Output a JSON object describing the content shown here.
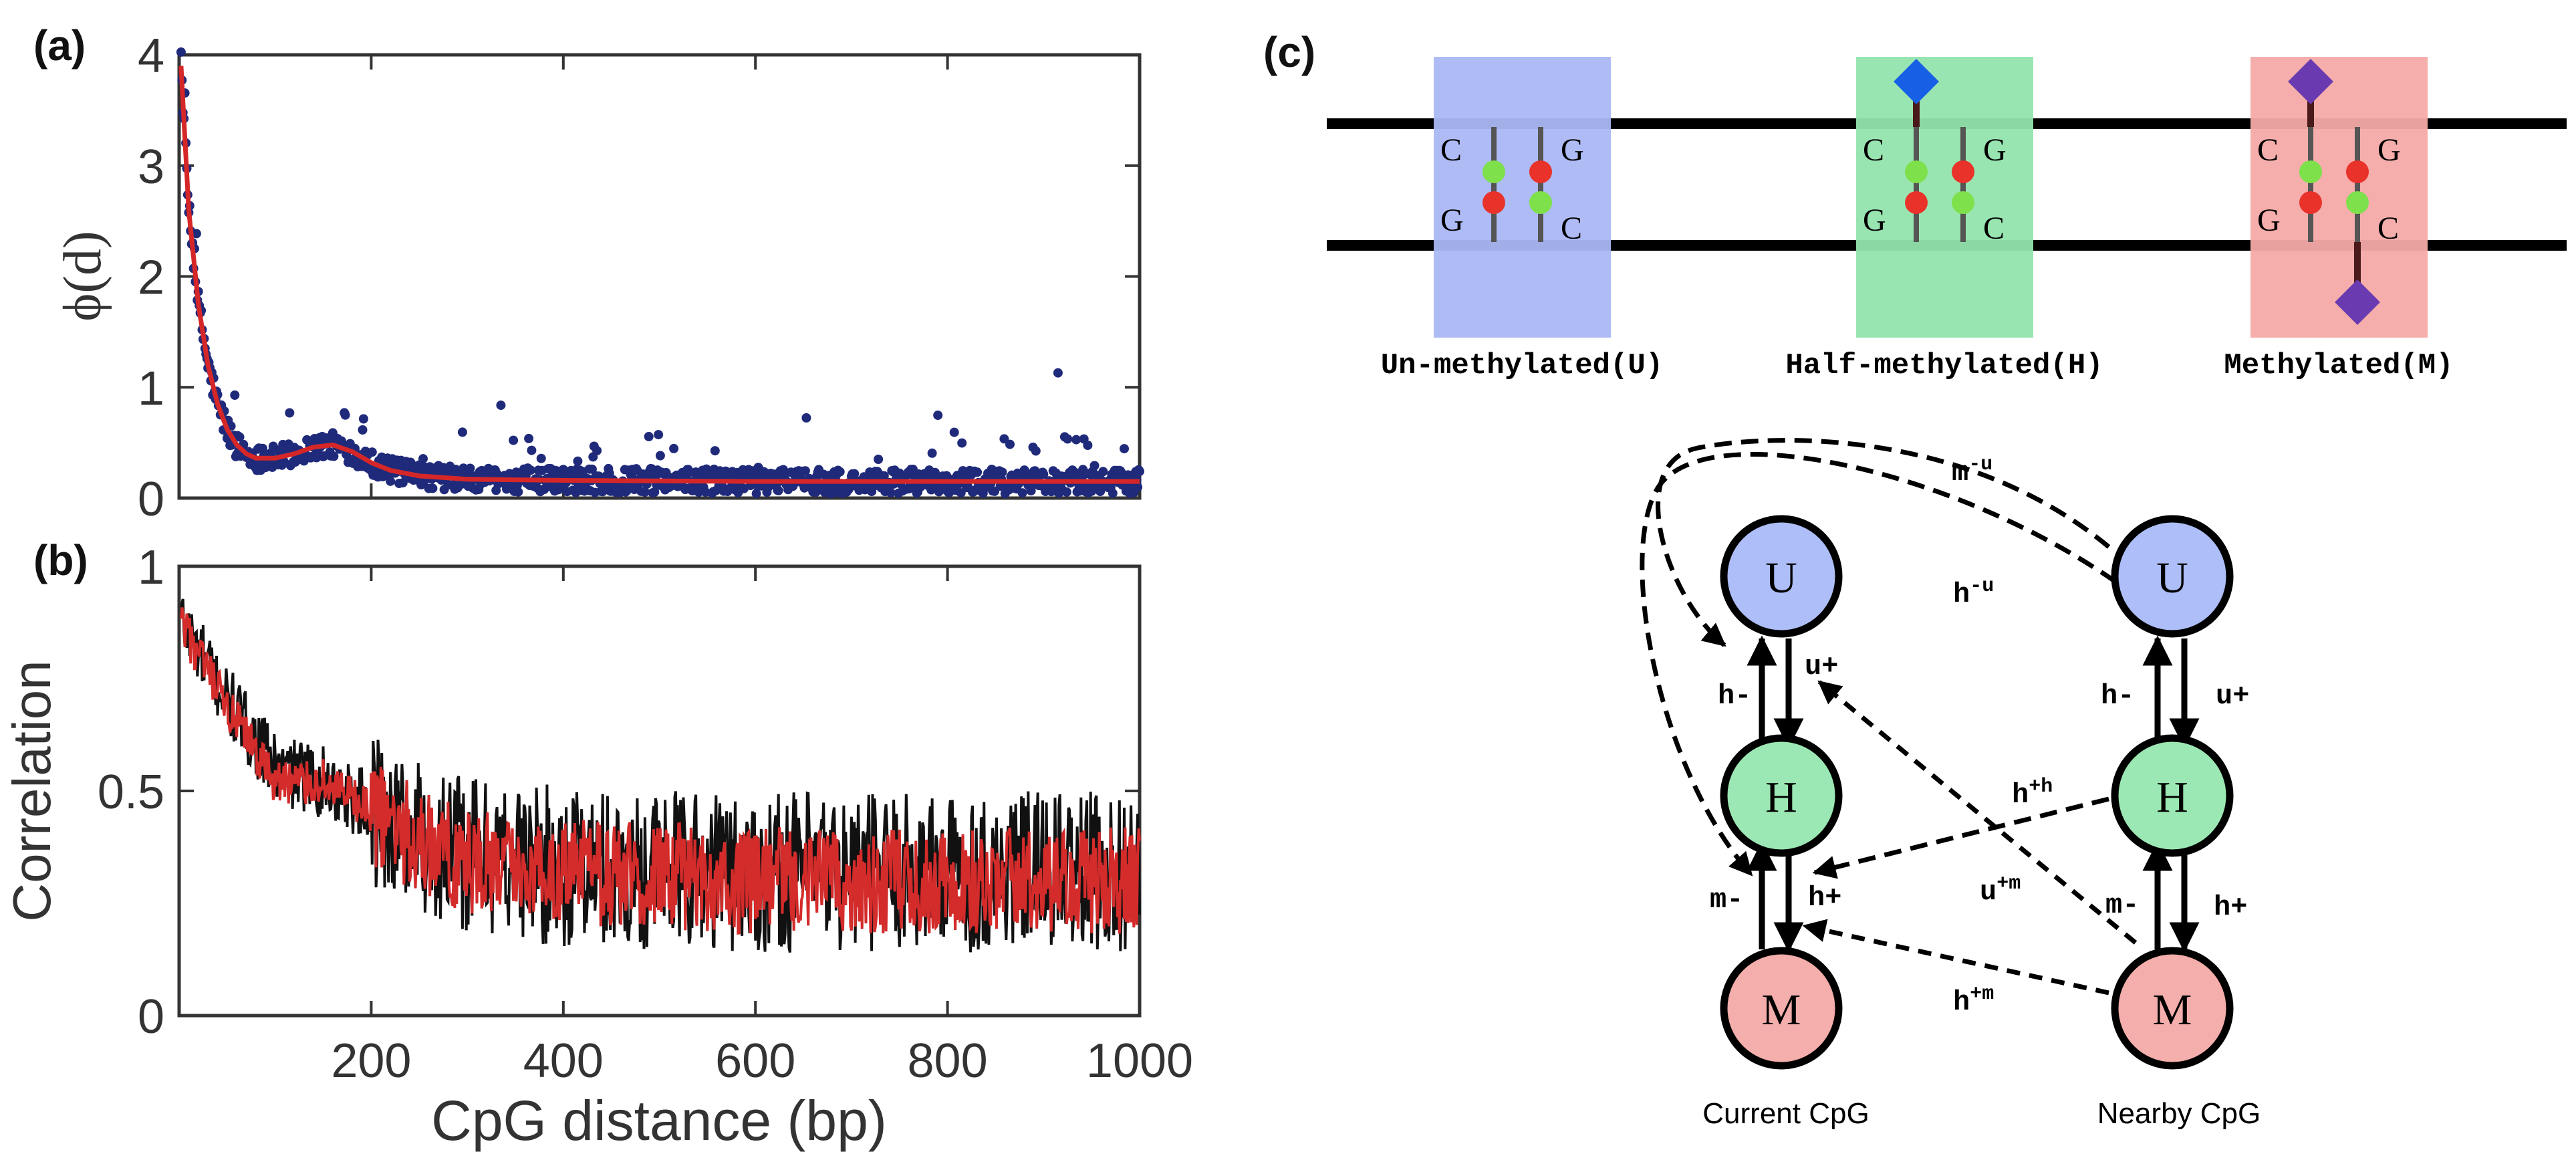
{
  "colors": {
    "scatter": "#1f2a7a",
    "fit": "#d62728",
    "observed": "#111111",
    "model": "#d42b2b",
    "box_u": "#aab7f4",
    "box_h": "#93e4ad",
    "box_m": "#f4aaa6",
    "cpg_green": "#7ee04a",
    "cpg_red": "#e8322a",
    "methyl_blue": "#1760e6",
    "methyl_purple": "#6a3bb0"
  },
  "panel_labels": {
    "a": "(a)",
    "b": "(b)",
    "c": "(c)"
  },
  "xlabel": "CpG distance (bp)",
  "chart_data": [
    {
      "type": "scatter",
      "panel": "(a)",
      "ylabel": "ϕ(d)",
      "xlim": [
        0,
        1000
      ],
      "ylim": [
        0,
        4
      ],
      "xticks": [
        200,
        400,
        600,
        800,
        1000
      ],
      "yticks": [
        0,
        1,
        2,
        3,
        4
      ],
      "series": [
        {
          "kind": "scatter",
          "color": "#1f2a7a",
          "note_x": [
            2,
            1000
          ]
        },
        {
          "kind": "line",
          "color": "#d62728",
          "x": [
            2,
            10,
            20,
            30,
            40,
            50,
            60,
            70,
            80,
            100,
            120,
            140,
            160,
            180,
            200,
            220,
            250,
            300,
            400,
            600,
            800,
            1000
          ],
          "y": [
            3.9,
            2.6,
            1.75,
            1.2,
            0.85,
            0.62,
            0.48,
            0.4,
            0.36,
            0.36,
            0.4,
            0.46,
            0.48,
            0.42,
            0.32,
            0.25,
            0.2,
            0.17,
            0.16,
            0.15,
            0.15,
            0.15
          ]
        }
      ]
    },
    {
      "type": "line",
      "panel": "(b)",
      "ylabel": "Correlation",
      "xlim": [
        0,
        1000
      ],
      "ylim": [
        0,
        1
      ],
      "xticks": [
        200,
        400,
        600,
        800,
        1000
      ],
      "yticks": [
        0,
        0.5,
        1
      ],
      "series": [
        {
          "color": "#111111",
          "trend_x": [
            2,
            50,
            100,
            150,
            200,
            250,
            300,
            400,
            600,
            800,
            1000
          ],
          "trend_y": [
            0.88,
            0.7,
            0.55,
            0.52,
            0.46,
            0.4,
            0.36,
            0.33,
            0.32,
            0.32,
            0.32
          ]
        },
        {
          "color": "#d42b2b",
          "trend_x": [
            2,
            50,
            100,
            150,
            200,
            250,
            300,
            400,
            600,
            800,
            1000
          ],
          "trend_y": [
            0.87,
            0.68,
            0.52,
            0.52,
            0.45,
            0.39,
            0.34,
            0.32,
            0.3,
            0.3,
            0.3
          ]
        }
      ]
    }
  ],
  "diagram": {
    "strand_labels": {
      "c": "C",
      "g": "G"
    },
    "states": [
      {
        "key": "U",
        "label": "Un-methylated(U)"
      },
      {
        "key": "H",
        "label": "Half-methylated(H)"
      },
      {
        "key": "M",
        "label": "Methylated(M)"
      }
    ],
    "nodes": {
      "u": "U",
      "h": "H",
      "m": "M"
    },
    "columns": {
      "current": "Current CpG",
      "nearby": "Nearby CpG"
    },
    "rates": {
      "left_h_minus": "h-",
      "left_u_plus": "u+",
      "left_m_minus": "m-",
      "left_h_plus": "h+",
      "right_h_minus": "h-",
      "right_u_plus": "u+",
      "right_m_minus": "m-",
      "right_h_plus": "h+",
      "m_u_base": "m",
      "m_u_sup": "-u",
      "h_u_base": "h",
      "h_u_sup": "-u",
      "h_h_base": "h",
      "h_h_sup": "+h",
      "u_m_base": "u",
      "u_m_sup": "+m",
      "h_m_base": "h",
      "h_m_sup": "+m"
    }
  }
}
